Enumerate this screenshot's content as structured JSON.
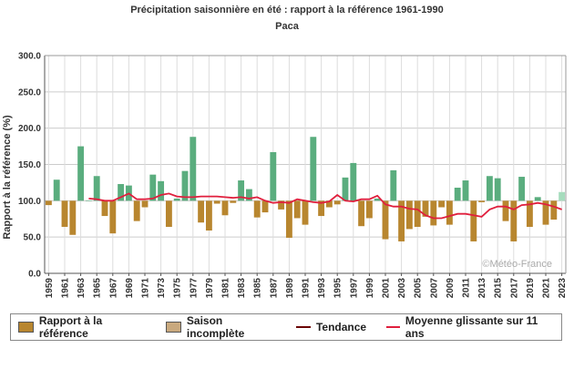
{
  "chart_data": {
    "type": "bar",
    "title": "Précipitation saisonnière en été : rapport à la référence 1961-1990",
    "subtitle": "Paca",
    "ylabel": "Rapport à la référence (%)",
    "xlabel": "",
    "ylim": [
      0,
      300
    ],
    "yticks": [
      "0.0",
      "50.0",
      "100.0",
      "150.0",
      "200.0",
      "250.0",
      "300.0"
    ],
    "baseline": 100,
    "grid": true,
    "watermark": "©Météo-France",
    "years": [
      1959,
      1960,
      1961,
      1962,
      1963,
      1964,
      1965,
      1966,
      1967,
      1968,
      1969,
      1970,
      1971,
      1972,
      1973,
      1974,
      1975,
      1976,
      1977,
      1978,
      1979,
      1980,
      1981,
      1982,
      1983,
      1984,
      1985,
      1986,
      1987,
      1988,
      1989,
      1990,
      1991,
      1992,
      1993,
      1994,
      1995,
      1996,
      1997,
      1998,
      1999,
      2000,
      2001,
      2002,
      2003,
      2004,
      2005,
      2006,
      2007,
      2008,
      2009,
      2010,
      2011,
      2012,
      2013,
      2014,
      2015,
      2016,
      2017,
      2018,
      2019,
      2020,
      2021,
      2022,
      2023
    ],
    "values": [
      94,
      129,
      64,
      53,
      175,
      100,
      134,
      79,
      55,
      123,
      121,
      72,
      91,
      136,
      127,
      64,
      103,
      141,
      188,
      70,
      59,
      96,
      80,
      97,
      128,
      116,
      77,
      84,
      167,
      88,
      49,
      76,
      67,
      188,
      79,
      91,
      95,
      132,
      152,
      65,
      76,
      103,
      47,
      142,
      44,
      61,
      64,
      78,
      66,
      91,
      67,
      118,
      128,
      44,
      98,
      134,
      131,
      72,
      44,
      133,
      64,
      105,
      67,
      74,
      112
    ],
    "incomplete_years": [
      2023
    ],
    "moving_average": {
      "name": "Moyenne glissante sur 11 ans",
      "start_year": 1964,
      "values": [
        103,
        102,
        100,
        100,
        105,
        110,
        102,
        102,
        103,
        108,
        110,
        106,
        105,
        105,
        106,
        106,
        106,
        105,
        104,
        105,
        103,
        105,
        100,
        97,
        98,
        97,
        102,
        100,
        98,
        97,
        99,
        108,
        100,
        99,
        102,
        102,
        107,
        95,
        92,
        92,
        89,
        88,
        80,
        76,
        76,
        79,
        82,
        82,
        80,
        78,
        88,
        92,
        92,
        88,
        94,
        95,
        97,
        95,
        92,
        88
      ]
    },
    "colors": {
      "above": "#5aad7e",
      "below": "#b8862f",
      "incomplete": "#a6dcbd",
      "moving_average": "#e01f3d",
      "trend": "#6b0000"
    },
    "legend": [
      {
        "label": "Rapport à la référence",
        "kind": "box",
        "color": "#b8862f"
      },
      {
        "label": "Saison incomplète",
        "kind": "box",
        "color": "#c9a97e"
      },
      {
        "label": "Tendance",
        "kind": "line",
        "color": "#6b0000"
      },
      {
        "label": "Moyenne glissante sur 11 ans",
        "kind": "line",
        "color": "#e01f3d"
      }
    ],
    "legend_position": "bottom"
  }
}
